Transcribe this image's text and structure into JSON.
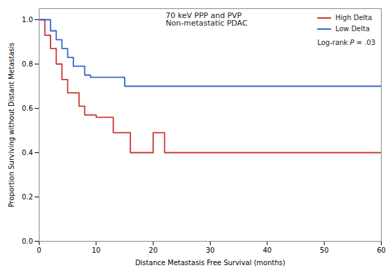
{
  "chart_data": {
    "type": "line",
    "title": "70 keV PPP and PVP",
    "subtitle": "Non-metastatic PDAC",
    "xlabel": "Distance Metastasis Free Survival (months)",
    "ylabel": "Proportion Surviving without Distant Metastasis",
    "annotations": [
      "Log-rank P = .03"
    ],
    "series": [
      {
        "name": "High Delta",
        "color": "#CC3333",
        "line_style": "step",
        "x": [
          0,
          1,
          2,
          3,
          4,
          5,
          7,
          8,
          10,
          13,
          16,
          19,
          20,
          22,
          45,
          60
        ],
        "values": [
          1.0,
          0.93,
          0.87,
          0.8,
          0.73,
          0.67,
          0.61,
          0.57,
          0.56,
          0.49,
          0.4,
          0.4,
          0.49,
          0.4,
          0.4,
          0.4
        ]
      },
      {
        "name": "Low Delta",
        "color": "#3366CC",
        "line_style": "step",
        "x": [
          0,
          2,
          3,
          4,
          5,
          6,
          8,
          9,
          11,
          13,
          15,
          60
        ],
        "values": [
          1.0,
          0.95,
          0.91,
          0.87,
          0.83,
          0.79,
          0.75,
          0.74,
          0.74,
          0.74,
          0.7,
          0.7
        ]
      }
    ],
    "xlim": [
      0,
      60
    ],
    "ylim": [
      0.0,
      1.05
    ],
    "xticks": [
      0,
      10,
      20,
      30,
      40,
      50,
      60
    ],
    "yticks": [
      {
        "value": 0.0,
        "label": "0.0"
      },
      {
        "value": 0.2,
        "label": "0.2"
      },
      {
        "value": 0.4,
        "label": "0.4"
      },
      {
        "value": 0.6,
        "label": "0.6"
      },
      {
        "value": 0.8,
        "label": "0.8"
      },
      {
        "value": 1.0,
        "label": "1.0"
      }
    ],
    "grid": false,
    "legend": "upper right"
  }
}
